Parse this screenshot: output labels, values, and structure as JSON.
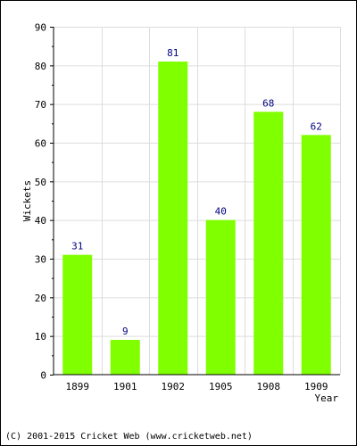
{
  "chart_data": {
    "type": "bar",
    "categories": [
      "1899",
      "1901",
      "1902",
      "1905",
      "1908",
      "1909"
    ],
    "values": [
      31,
      9,
      81,
      40,
      68,
      62
    ],
    "title": "",
    "xlabel": "Year",
    "ylabel": "Wickets",
    "ylim": [
      0,
      90
    ],
    "yticks": [
      0,
      10,
      20,
      30,
      40,
      50,
      60,
      70,
      80,
      90
    ],
    "grid": true,
    "bar_color": "#80ff00",
    "label_color": "#000080",
    "grid_color": "#dddddd"
  },
  "footer": {
    "copyright": "(C) 2001-2015 Cricket Web (www.cricketweb.net)"
  }
}
